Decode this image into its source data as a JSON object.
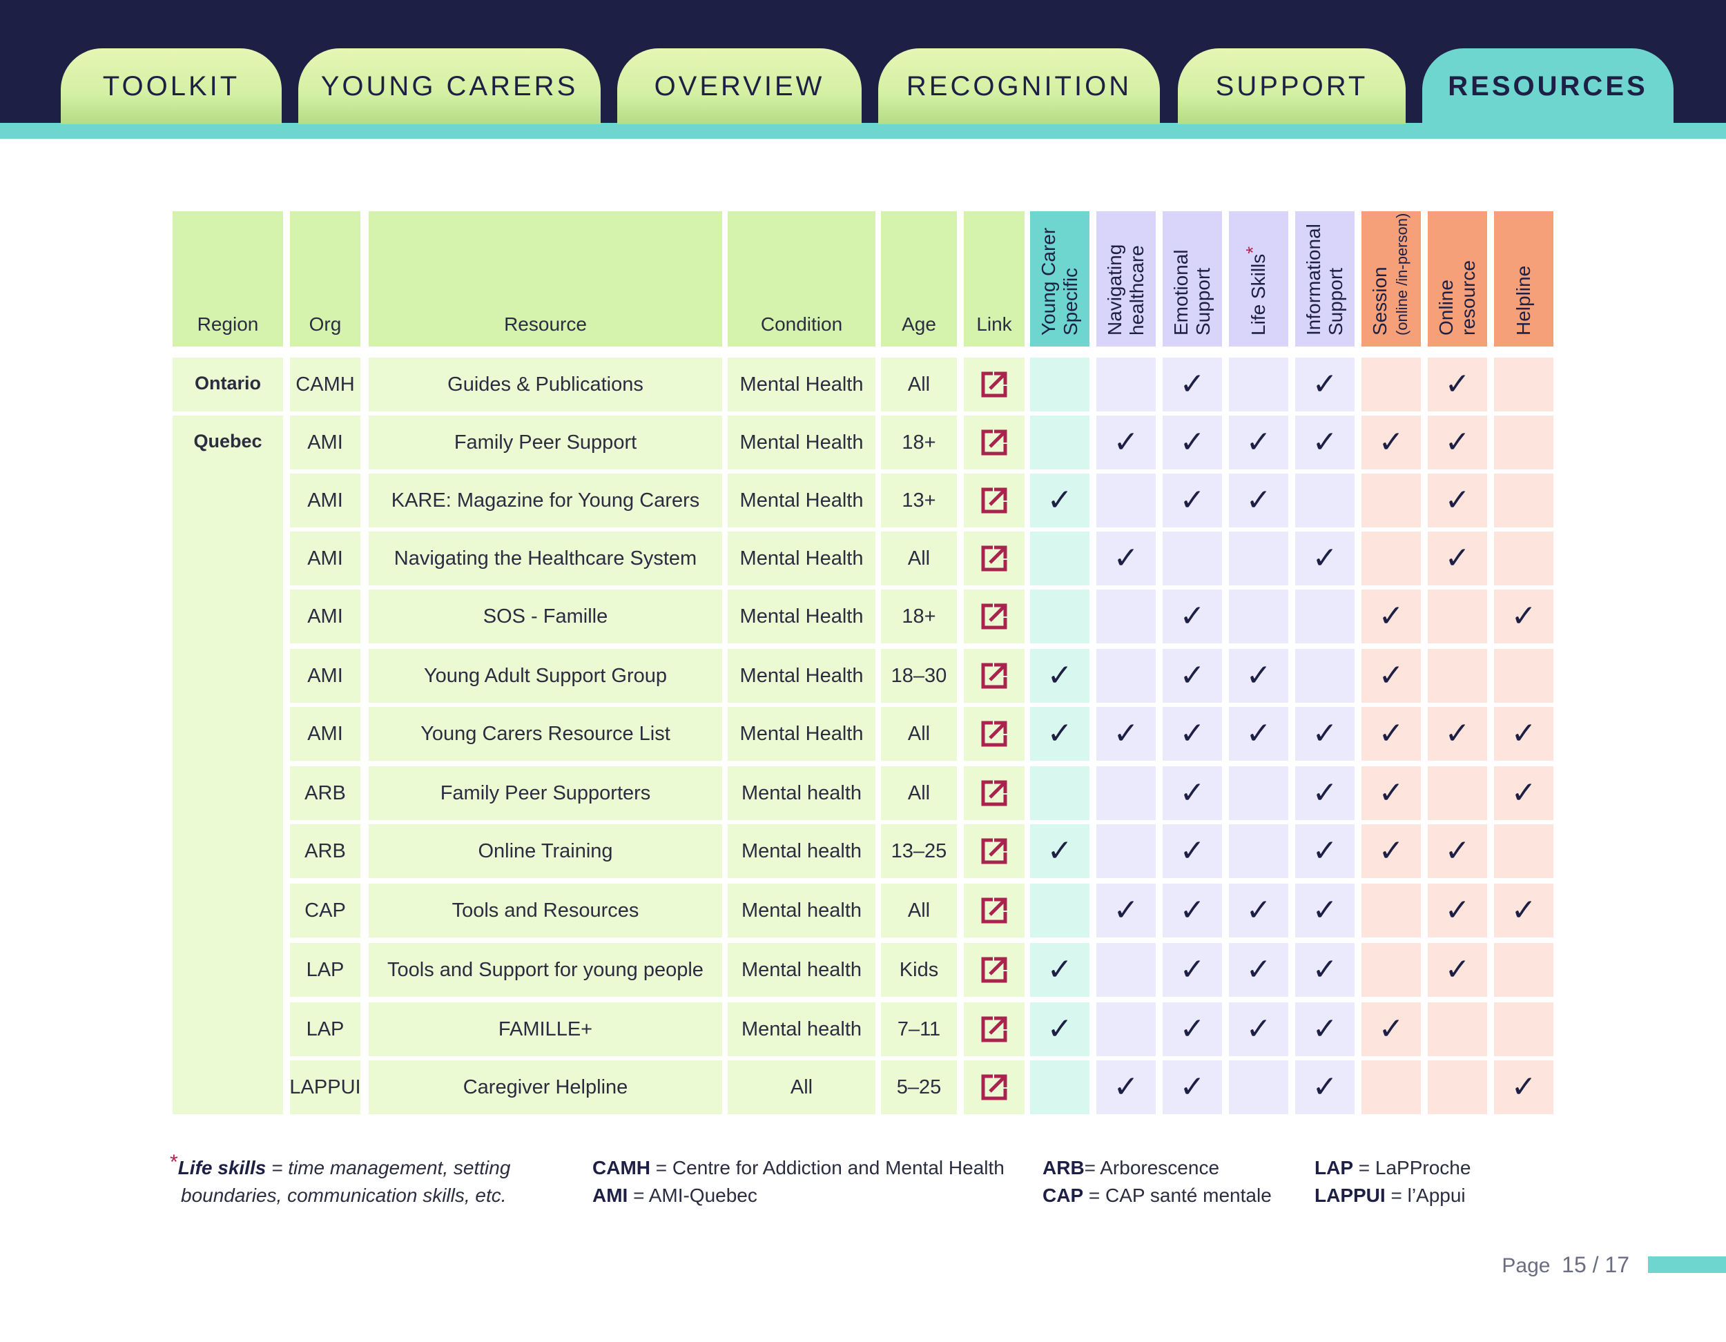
{
  "tabs": [
    {
      "label": "TOOLKIT",
      "active": false
    },
    {
      "label": "YOUNG CARERS",
      "active": false
    },
    {
      "label": "OVERVIEW",
      "active": false
    },
    {
      "label": "RECOGNITION",
      "active": false
    },
    {
      "label": "SUPPORT",
      "active": false
    },
    {
      "label": "RESOURCES",
      "active": true
    }
  ],
  "table": {
    "headers": {
      "region": "Region",
      "org": "Org",
      "resource": "Resource",
      "condition": "Condition",
      "age": "Age",
      "link": "Link"
    },
    "feature_headers": [
      {
        "line1": "Young Carer",
        "line2": "Specific"
      },
      {
        "line1": "Navigating",
        "line2": "healthcare"
      },
      {
        "line1": "Emotional",
        "line2": "Support"
      },
      {
        "line1": "Life Skills",
        "line2": "",
        "star": "*"
      },
      {
        "line1": "Informational",
        "line2": "Support"
      },
      {
        "line1": "Session",
        "line2": "(online /in-person)"
      },
      {
        "line1": "Online",
        "line2": "resource"
      },
      {
        "line1": "Helpline",
        "line2": ""
      }
    ],
    "regions": [
      {
        "label": "Ontario",
        "rows": 1
      },
      {
        "label": "Quebec",
        "rows": 12
      }
    ],
    "rows": [
      {
        "org": "CAMH",
        "resource": "Guides & Publications",
        "condition": "Mental Health",
        "age": "All",
        "checks": [
          0,
          0,
          1,
          0,
          1,
          0,
          1,
          0
        ]
      },
      {
        "org": "AMI",
        "resource": "Family Peer Support",
        "condition": "Mental Health",
        "age": "18+",
        "checks": [
          0,
          1,
          1,
          1,
          1,
          1,
          1,
          0
        ]
      },
      {
        "org": "AMI",
        "resource": "KARE: Magazine for Young Carers",
        "condition": "Mental Health",
        "age": "13+",
        "checks": [
          1,
          0,
          1,
          1,
          0,
          0,
          1,
          0
        ]
      },
      {
        "org": "AMI",
        "resource": "Navigating the Healthcare System",
        "condition": "Mental Health",
        "age": "All",
        "checks": [
          0,
          1,
          0,
          0,
          1,
          0,
          1,
          0
        ]
      },
      {
        "org": "AMI",
        "resource": "SOS - Famille",
        "condition": "Mental Health",
        "age": "18+",
        "checks": [
          0,
          0,
          1,
          0,
          0,
          1,
          0,
          1
        ]
      },
      {
        "org": "AMI",
        "resource": "Young Adult Support Group",
        "condition": "Mental Health",
        "age": "18–30",
        "checks": [
          1,
          0,
          1,
          1,
          0,
          1,
          0,
          0
        ]
      },
      {
        "org": "AMI",
        "resource": "Young Carers Resource List",
        "condition": "Mental Health",
        "age": "All",
        "checks": [
          1,
          1,
          1,
          1,
          1,
          1,
          1,
          1
        ]
      },
      {
        "org": "ARB",
        "resource": "Family Peer Supporters",
        "condition": "Mental health",
        "age": "All",
        "checks": [
          0,
          0,
          1,
          0,
          1,
          1,
          0,
          1
        ]
      },
      {
        "org": "ARB",
        "resource": "Online Training",
        "condition": "Mental health",
        "age": "13–25",
        "checks": [
          1,
          0,
          1,
          0,
          1,
          1,
          1,
          0
        ]
      },
      {
        "org": "CAP",
        "resource": "Tools and Resources",
        "condition": "Mental health",
        "age": "All",
        "checks": [
          0,
          1,
          1,
          1,
          1,
          0,
          1,
          1
        ]
      },
      {
        "org": "LAP",
        "resource": "Tools and Support for young people",
        "condition": "Mental health",
        "age": "Kids",
        "checks": [
          1,
          0,
          1,
          1,
          1,
          0,
          1,
          0
        ]
      },
      {
        "org": "LAP",
        "resource": "FAMILLE+",
        "condition": "Mental health",
        "age": "7–11",
        "checks": [
          1,
          0,
          1,
          1,
          1,
          1,
          0,
          0
        ]
      },
      {
        "org": "LAPPUI",
        "resource": "Caregiver Helpline",
        "condition": "All",
        "age": "5–25",
        "checks": [
          0,
          1,
          1,
          0,
          1,
          0,
          0,
          1
        ]
      }
    ],
    "check_glyph": "✓"
  },
  "footnotes": {
    "star": "*",
    "life_skills_term": "Life skills",
    "life_skills_def_1": " = time management, setting",
    "life_skills_def_2": "boundaries, communication skills, etc.",
    "abbr": [
      {
        "abbr": "CAMH",
        "text": " = Centre for Addiction and Mental Health"
      },
      {
        "abbr": "AMI",
        "text": " = AMI-Quebec"
      },
      {
        "abbr": "ARB",
        "text": "= Arborescence"
      },
      {
        "abbr": "CAP",
        "text": " = CAP santé mentale"
      },
      {
        "abbr": "LAP",
        "text": " = LaPProche"
      },
      {
        "abbr": "LAPPUI",
        "text": " = l’Appui"
      }
    ]
  },
  "page": {
    "label": "Page",
    "number": "15 / 17"
  },
  "colors": {
    "navy": "#1d1f45",
    "teal": "#6ed5cf",
    "green_header": "#d5f3ad",
    "lavender_header": "#d9d4f9",
    "orange_header": "#f5a079",
    "link_icon": "#a8244f"
  }
}
